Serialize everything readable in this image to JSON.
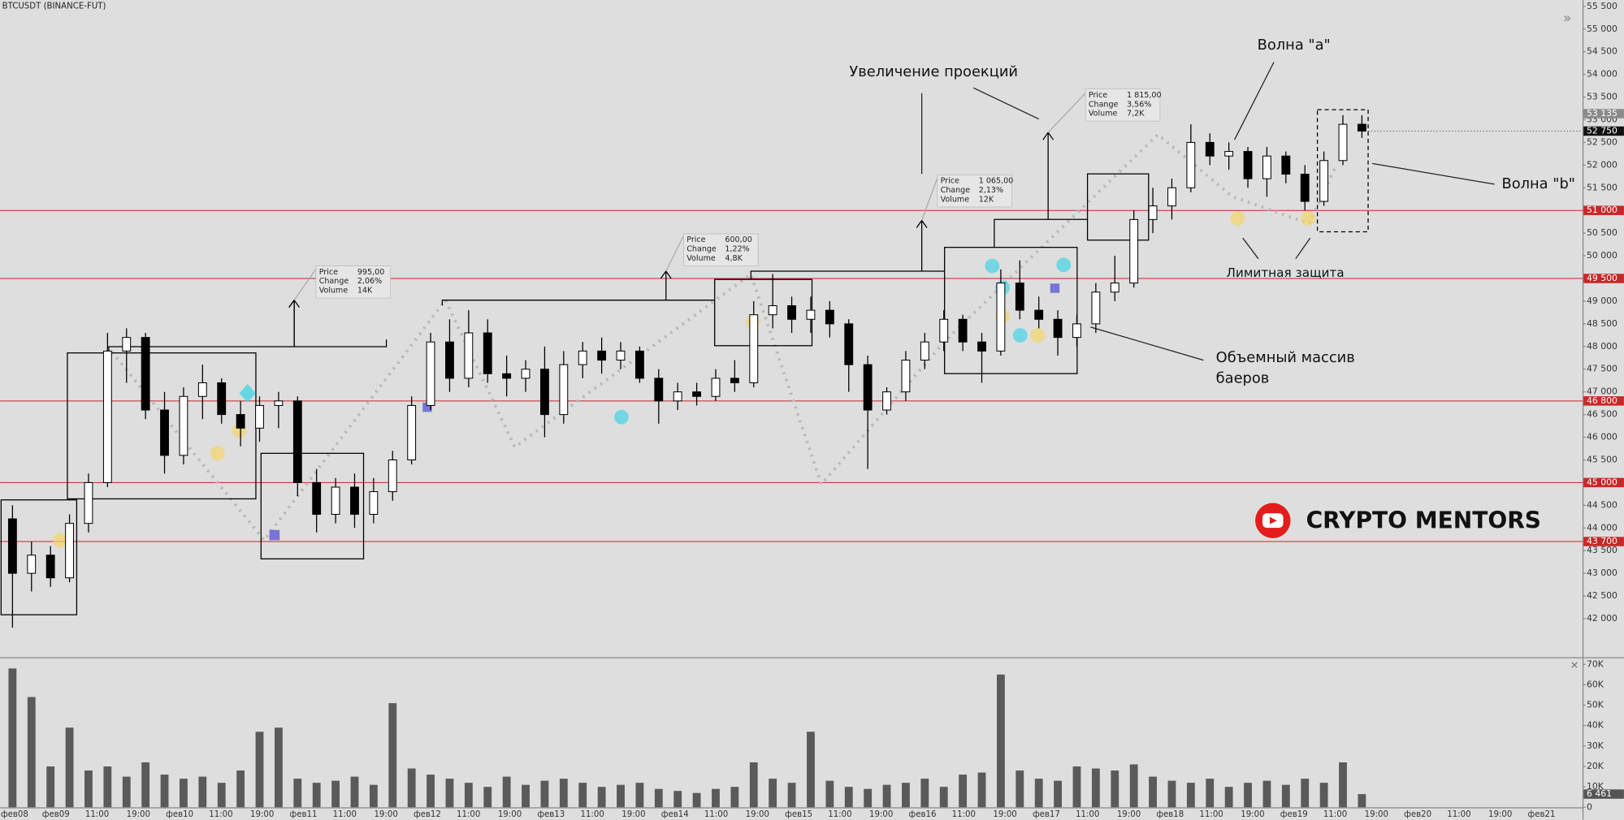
{
  "chart_data": {
    "type": "candlestick",
    "title": "BTCUSDT (BINANCE-FUT)",
    "up_color": "#ffffff",
    "down_color": "#000000",
    "ohlc": [
      [
        44200,
        44500,
        41800,
        43000
      ],
      [
        43000,
        43700,
        42600,
        43400
      ],
      [
        43400,
        43600,
        42700,
        42900
      ],
      [
        42900,
        44300,
        42800,
        44100
      ],
      [
        44100,
        45200,
        43900,
        45000
      ],
      [
        45000,
        48300,
        44900,
        47900
      ],
      [
        47900,
        48400,
        47200,
        48200
      ],
      [
        48200,
        48300,
        46400,
        46600
      ],
      [
        46600,
        47000,
        45200,
        45600
      ],
      [
        45600,
        47100,
        45400,
        46900
      ],
      [
        46900,
        47600,
        46400,
        47200
      ],
      [
        47200,
        47300,
        46300,
        46500
      ],
      [
        46500,
        46800,
        45800,
        46200
      ],
      [
        46200,
        46900,
        45900,
        46700
      ],
      [
        46700,
        47000,
        46200,
        46800
      ],
      [
        46800,
        46900,
        44700,
        45000
      ],
      [
        45000,
        45300,
        43900,
        44300
      ],
      [
        44300,
        45100,
        44100,
        44900
      ],
      [
        44900,
        45200,
        44000,
        44300
      ],
      [
        44300,
        45100,
        44100,
        44800
      ],
      [
        44800,
        45700,
        44600,
        45500
      ],
      [
        45500,
        46900,
        45400,
        46700
      ],
      [
        46700,
        48300,
        46600,
        48100
      ],
      [
        48100,
        48600,
        47000,
        47300
      ],
      [
        47300,
        48800,
        47100,
        48300
      ],
      [
        48300,
        48600,
        47200,
        47400
      ],
      [
        47400,
        47800,
        46900,
        47300
      ],
      [
        47300,
        47700,
        47000,
        47500
      ],
      [
        47500,
        48000,
        46000,
        46500
      ],
      [
        46500,
        47900,
        46300,
        47600
      ],
      [
        47600,
        48100,
        47300,
        47900
      ],
      [
        47900,
        48200,
        47400,
        47700
      ],
      [
        47700,
        48100,
        47500,
        47900
      ],
      [
        47900,
        48000,
        47200,
        47300
      ],
      [
        47300,
        47500,
        46300,
        46800
      ],
      [
        46800,
        47200,
        46600,
        47000
      ],
      [
        47000,
        47200,
        46700,
        46900
      ],
      [
        46900,
        47500,
        46800,
        47300
      ],
      [
        47300,
        47700,
        47000,
        47200
      ],
      [
        47200,
        49000,
        47100,
        48700
      ],
      [
        48700,
        49600,
        48400,
        48900
      ],
      [
        48900,
        49100,
        48300,
        48600
      ],
      [
        48600,
        49100,
        48300,
        48800
      ],
      [
        48800,
        49000,
        48200,
        48500
      ],
      [
        48500,
        48600,
        47000,
        47600
      ],
      [
        47600,
        47800,
        45300,
        46600
      ],
      [
        46600,
        47100,
        46500,
        47000
      ],
      [
        47000,
        47900,
        46800,
        47700
      ],
      [
        47700,
        48300,
        47500,
        48100
      ],
      [
        48100,
        48800,
        47900,
        48600
      ],
      [
        48600,
        48700,
        47900,
        48100
      ],
      [
        48100,
        48300,
        47200,
        47900
      ],
      [
        47900,
        49700,
        47800,
        49400
      ],
      [
        49400,
        49900,
        48600,
        48800
      ],
      [
        48800,
        49100,
        48400,
        48600
      ],
      [
        48600,
        48800,
        47800,
        48200
      ],
      [
        48200,
        48700,
        48000,
        48500
      ],
      [
        48500,
        49400,
        48300,
        49200
      ],
      [
        49200,
        50000,
        49000,
        49400
      ],
      [
        49400,
        51000,
        49300,
        50800
      ],
      [
        50800,
        51500,
        50500,
        51100
      ],
      [
        51100,
        51700,
        50800,
        51500
      ],
      [
        51500,
        52900,
        51400,
        52500
      ],
      [
        52500,
        52700,
        52000,
        52200
      ],
      [
        52200,
        52500,
        51900,
        52300
      ],
      [
        52300,
        52400,
        51500,
        51700
      ],
      [
        51700,
        52400,
        51300,
        52200
      ],
      [
        52200,
        52300,
        51600,
        51800
      ],
      [
        51800,
        52000,
        51000,
        51200
      ],
      [
        51200,
        52300,
        51100,
        52100
      ],
      [
        52100,
        53100,
        52000,
        52900
      ],
      [
        52900,
        53100,
        52600,
        52750
      ]
    ],
    "ylim": [
      41150,
      55640
    ],
    "yticks": [
      {
        "value": 42000,
        "label": "42 000"
      },
      {
        "value": 42500,
        "label": "42 500"
      },
      {
        "value": 43000,
        "label": "43 000"
      },
      {
        "value": 43500,
        "label": "43 500"
      },
      {
        "value": 44000,
        "label": "44 000"
      },
      {
        "value": 44500,
        "label": "44 500"
      },
      {
        "value": 45000,
        "label": "45 000"
      },
      {
        "value": 45500,
        "label": "45 500"
      },
      {
        "value": 46000,
        "label": "46 000"
      },
      {
        "value": 46500,
        "label": "46 500"
      },
      {
        "value": 47000,
        "label": "47 000"
      },
      {
        "value": 47500,
        "label": "47 500"
      },
      {
        "value": 48000,
        "label": "48 000"
      },
      {
        "value": 48500,
        "label": "48 500"
      },
      {
        "value": 49000,
        "label": "49 000"
      },
      {
        "value": 49500,
        "label": "49 500"
      },
      {
        "value": 50000,
        "label": "50 000"
      },
      {
        "value": 50500,
        "label": "50 500"
      },
      {
        "value": 51000,
        "label": "51 000"
      },
      {
        "value": 51500,
        "label": "51 500"
      },
      {
        "value": 52000,
        "label": "52 000"
      },
      {
        "value": 52500,
        "label": "52 500"
      },
      {
        "value": 53000,
        "label": "53 000"
      },
      {
        "value": 53500,
        "label": "53 500"
      },
      {
        "value": 54000,
        "label": "54 000"
      },
      {
        "value": 54500,
        "label": "54 500"
      },
      {
        "value": 55000,
        "label": "55 000"
      },
      {
        "value": 55500,
        "label": "55 500"
      }
    ],
    "levels": {
      "color": "#c62828",
      "values": [
        {
          "value": 51000,
          "label": "51 000"
        },
        {
          "value": 49500,
          "label": "49 500"
        },
        {
          "value": 46800,
          "label": "46 800"
        },
        {
          "value": 45000,
          "label": "45 000"
        },
        {
          "value": 43700,
          "label": "43 700"
        }
      ]
    },
    "last_price": {
      "value": 52750,
      "label": "52 750"
    },
    "high_price": {
      "value": 53135,
      "label": "53 135"
    },
    "volume": {
      "color": "#5a5a5a",
      "values": [
        68000,
        54000,
        20000,
        39000,
        18000,
        20000,
        15000,
        22000,
        16000,
        14000,
        15000,
        12000,
        18000,
        37000,
        39000,
        14000,
        12000,
        13000,
        15000,
        11000,
        51000,
        19000,
        16000,
        14000,
        12000,
        10000,
        15000,
        11000,
        13000,
        14000,
        12000,
        10000,
        11000,
        12000,
        9000,
        8000,
        7000,
        9000,
        10000,
        22000,
        14000,
        12000,
        37000,
        13000,
        10000,
        9000,
        11000,
        12000,
        14000,
        10000,
        16000,
        17000,
        65000,
        18000,
        14000,
        13000,
        20000,
        19000,
        18000,
        21000,
        15000,
        13000,
        12000,
        14000,
        10000,
        12000,
        13000,
        11000,
        14000,
        12000,
        22000,
        6461
      ],
      "ylim": [
        0,
        73000
      ],
      "yticks": [
        0,
        {
          "value": 10000,
          "label": "10K"
        },
        {
          "value": 20000,
          "label": "20K"
        },
        {
          "value": 30000,
          "label": "30K"
        },
        {
          "value": 40000,
          "label": "40K"
        },
        {
          "value": 50000,
          "label": "50K"
        },
        {
          "value": 60000,
          "label": "60K"
        },
        {
          "value": 70000,
          "label": "70K"
        }
      ],
      "last": {
        "value": 6461,
        "label": "6 461"
      }
    },
    "xtick_labels": [
      "фев08",
      "фев09",
      "11:00",
      "19:00",
      "фев10",
      "11:00",
      "19:00",
      "фев11",
      "11:00",
      "19:00",
      "фев12",
      "11:00",
      "19:00",
      "фев13",
      "11:00",
      "19:00",
      "фев14",
      "11:00",
      "19:00",
      "фев15",
      "11:00",
      "19:00",
      "фев16",
      "11:00",
      "19:00",
      "фев17",
      "11:00",
      "19:00",
      "фев18",
      "11:00",
      "19:00",
      "фев19",
      "11:00",
      "19:00",
      "фев20",
      "11:00",
      "19:00",
      "фев21"
    ],
    "callouts": [
      {
        "rows": [
          [
            "Price",
            "995,00"
          ],
          [
            "Change",
            "2,06%"
          ],
          [
            "Volume",
            "14K"
          ]
        ]
      },
      {
        "rows": [
          [
            "Price",
            "600,00"
          ],
          [
            "Change",
            "1,22%"
          ],
          [
            "Volume",
            "4,8K"
          ]
        ]
      },
      {
        "rows": [
          [
            "Price",
            "1 065,00"
          ],
          [
            "Change",
            "2,13%"
          ],
          [
            "Volume",
            "12K"
          ]
        ]
      },
      {
        "rows": [
          [
            "Price",
            "1 815,00"
          ],
          [
            "Change",
            "3,56%"
          ],
          [
            "Volume",
            "7,2K"
          ]
        ]
      }
    ],
    "annotations": {
      "projections": "Увеличение проекций",
      "wave_a": "Волна \"a\"",
      "wave_b": "Волна \"b\"",
      "limit": "Лимитная защита",
      "buyers": [
        "Объемный массив",
        "баеров"
      ]
    },
    "brand": "CRYPTO MENTORS"
  }
}
